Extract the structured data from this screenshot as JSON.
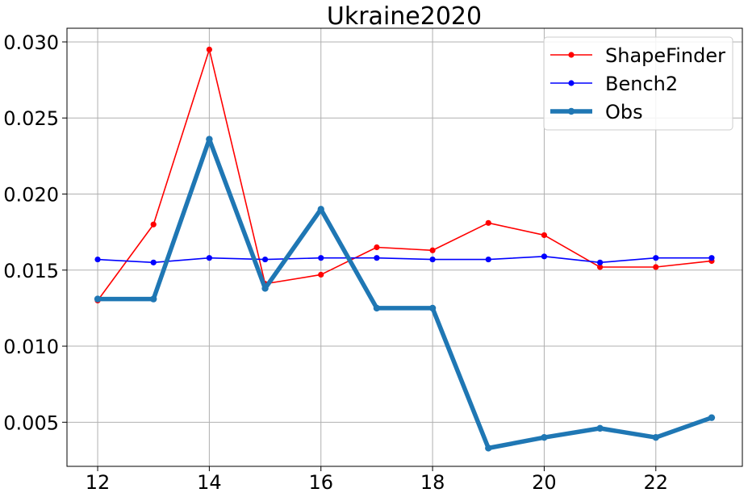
{
  "chart_data": {
    "type": "line",
    "title": "Ukraine2020",
    "xlabel": "",
    "ylabel": "",
    "x": [
      12,
      13,
      14,
      15,
      16,
      17,
      18,
      19,
      20,
      21,
      22,
      23
    ],
    "xticks": [
      "12",
      "14",
      "16",
      "18",
      "20",
      "22"
    ],
    "yticks": [
      "0.005",
      "0.010",
      "0.015",
      "0.020",
      "0.025",
      "0.030"
    ],
    "xlim": [
      11.45,
      23.55
    ],
    "ylim": [
      0.0021,
      0.0309
    ],
    "grid": true,
    "legend_position": "top-right",
    "series": [
      {
        "name": "ShapeFinder",
        "color": "#ff0000",
        "marker": "circle",
        "values": [
          0.013,
          0.018,
          0.0295,
          0.0141,
          0.0147,
          0.0165,
          0.0163,
          0.0181,
          0.0173,
          0.0152,
          0.0152,
          0.0156
        ]
      },
      {
        "name": "Bench2",
        "color": "#0000ff",
        "marker": "circle",
        "values": [
          0.0157,
          0.0155,
          0.0158,
          0.0157,
          0.0158,
          0.0158,
          0.0157,
          0.0157,
          0.0159,
          0.0155,
          0.0158,
          0.0158
        ]
      },
      {
        "name": "Obs",
        "color": "#1f77b4",
        "marker": "circle",
        "values": [
          0.0131,
          0.0131,
          0.0236,
          0.0138,
          0.019,
          0.0125,
          0.0125,
          0.0033,
          0.004,
          0.0046,
          0.004,
          0.0053
        ]
      }
    ]
  }
}
